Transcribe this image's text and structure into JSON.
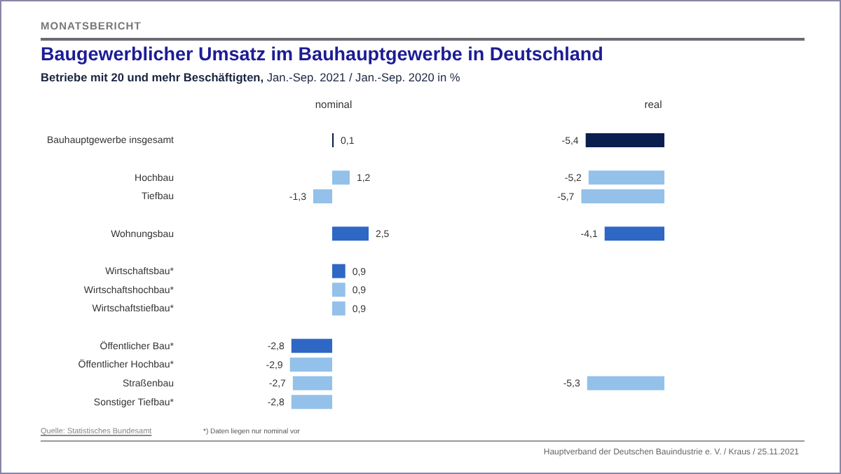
{
  "chart_data": [
    {
      "type": "other",
      "title": "Baugewerblicher Umsatz im Bauhauptgewerbe in Deutschland",
      "subtitle": "Betriebe mit 20 und mehr Beschäftigten, Jan.-Sep. 2021 / Jan.-Sep. 2020 in %",
      "annotations": [
        "MONATSBERICHT",
        "Quelle: Statistisches Bundesamt",
        "*) Daten liegen nur nominal vor",
        "Hauptverband  der Deutschen Bauindustrie e. V. / Kraus / 25.11.2021"
      ]
    },
    {
      "type": "bar",
      "orientation": "horizontal",
      "title": "nominal",
      "tick_labels": "y",
      "categories": [
        "Bauhauptgewerbe insgesamt",
        null,
        "Hochbau",
        "Tiefbau",
        null,
        "Wohnungsbau",
        null,
        "Wirtschaftsbau*",
        "Wirtschaftshochbau*",
        "Wirtschaftstiefbau*",
        null,
        "Öffentlicher Bau*",
        "Öffentlicher Hochbau*",
        "Straßenbau",
        "Sonstiger Tiefbau*"
      ],
      "values": [
        0.1,
        null,
        1.2,
        -1.3,
        null,
        2.5,
        null,
        0.9,
        0.9,
        0.9,
        null,
        -2.8,
        -2.9,
        -2.7,
        -2.8
      ],
      "colors": [
        "#0b1f4f",
        null,
        "#93c1ea",
        "#93c1ea",
        null,
        "#2e67c4",
        null,
        "#2e67c4",
        "#93c1ea",
        "#93c1ea",
        null,
        "#2e67c4",
        "#93c1ea",
        "#93c1ea",
        "#93c1ea"
      ],
      "value_labels": [
        "0,1",
        null,
        "1,2",
        "-1,3",
        null,
        "2,5",
        null,
        "0,9",
        "0,9",
        "0,9",
        null,
        "-2,8",
        "-2,9",
        "-2,7",
        "-2,8"
      ]
    },
    {
      "type": "bar",
      "orientation": "horizontal",
      "title": "real",
      "tick_labels": false,
      "categories": [
        null,
        null,
        null,
        null,
        null,
        null,
        null,
        null,
        null,
        null,
        null,
        null,
        null,
        null,
        null
      ],
      "values": [
        -5.4,
        null,
        -5.2,
        -5.7,
        null,
        -4.1,
        null,
        null,
        null,
        null,
        null,
        null,
        null,
        -5.3,
        null
      ],
      "colors": [
        "#0b1f4f",
        null,
        "#93c1ea",
        "#93c1ea",
        null,
        "#2e67c4",
        null,
        null,
        null,
        null,
        null,
        null,
        null,
        "#93c1ea",
        null
      ],
      "value_labels": [
        "-5,4",
        null,
        "-5,2",
        "-5,7",
        null,
        "-4,1",
        null,
        null,
        null,
        null,
        null,
        null,
        null,
        "-5,3",
        null
      ]
    }
  ]
}
